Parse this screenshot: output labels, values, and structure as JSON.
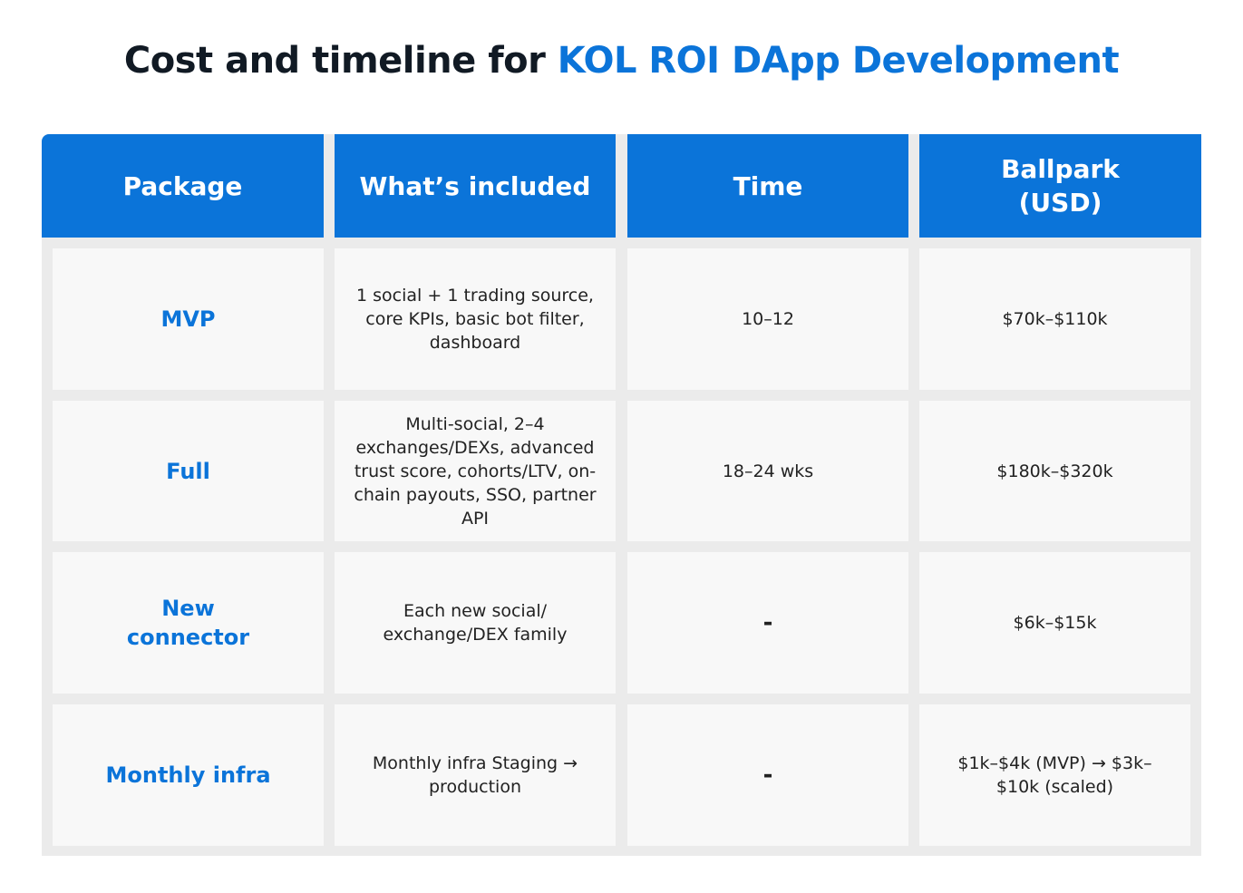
{
  "title": {
    "prefix": "Cost and timeline for ",
    "accent": "KOL ROI DApp Development"
  },
  "colors": {
    "accent": "#0b74d9",
    "header_bg": "#0b74d9",
    "cell_bg": "#f8f8f8",
    "grid_bg": "#ebebeb"
  },
  "headers": [
    "Package",
    "What’s included",
    "Time",
    "Ballpark\n(USD)"
  ],
  "rows": [
    {
      "package": "MVP",
      "included": "1 social + 1 trading source, core KPIs, basic bot filter, dashboard",
      "time": "10–12",
      "ballpark": "$70k–$110k"
    },
    {
      "package": "Full",
      "included": "Multi-social, 2–4 exchanges/DEXs, advanced trust score, cohorts/LTV, on-chain payouts, SSO, partner API",
      "time": "18–24 wks",
      "ballpark": "$180k–$320k"
    },
    {
      "package": "New connector",
      "included": "Each new social/ exchange/DEX family",
      "time": "-",
      "ballpark": "$6k–$15k"
    },
    {
      "package": "Monthly infra",
      "included": "Monthly infra Staging → production",
      "time": "-",
      "ballpark": "$1k–$4k (MVP) → $3k–$10k (scaled)"
    }
  ]
}
